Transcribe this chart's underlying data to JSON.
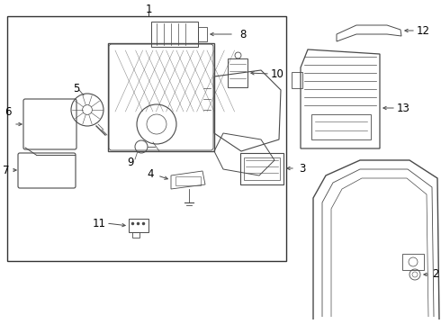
{
  "bg_color": "#ffffff",
  "line_color": "#4a4a4a",
  "box_line_color": "#333333",
  "label_color": "#000000",
  "font_size": 8.5
}
